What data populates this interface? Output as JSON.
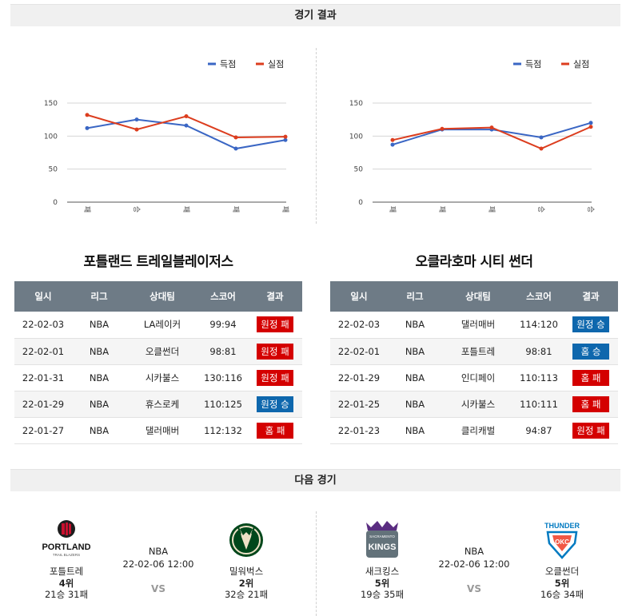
{
  "sections": {
    "results_title": "경기 결과",
    "next_title": "다음 경기"
  },
  "legend": {
    "score": "득점",
    "conceded": "실점",
    "score_color": "#3a66c4",
    "conceded_color": "#dc3d1e"
  },
  "charts": [
    {
      "chart_data": {
        "type": "line",
        "categories": [
          "패",
          "승",
          "패",
          "패",
          "패"
        ],
        "series": [
          {
            "name": "득점",
            "values": [
              112,
              125,
              116,
              81,
              94
            ]
          },
          {
            "name": "실점",
            "values": [
              132,
              110,
              130,
              98,
              99
            ]
          }
        ],
        "ylim": [
          0,
          150
        ],
        "yticks": [
          "0",
          "50",
          "100",
          "150"
        ],
        "legend": "top-right",
        "grid": true
      }
    },
    {
      "chart_data": {
        "type": "line",
        "categories": [
          "패",
          "패",
          "패",
          "승",
          "승"
        ],
        "series": [
          {
            "name": "득점",
            "values": [
              87,
              110,
              110,
              98,
              120
            ]
          },
          {
            "name": "실점",
            "values": [
              94,
              111,
              113,
              81,
              114
            ]
          }
        ],
        "ylim": [
          0,
          150
        ],
        "yticks": [
          "0",
          "50",
          "100",
          "150"
        ],
        "legend": "top-right",
        "grid": true
      }
    }
  ],
  "headers": [
    "일시",
    "리그",
    "상대팀",
    "스코어",
    "결과"
  ],
  "teams": [
    {
      "title": "포틀랜드 트레일블레이저스",
      "games": [
        {
          "date": "22-02-03",
          "league": "NBA",
          "opponent": "LA레이커",
          "score": "99:94",
          "result": "원정 패",
          "win": false
        },
        {
          "date": "22-02-01",
          "league": "NBA",
          "opponent": "오클썬더",
          "score": "98:81",
          "result": "원정 패",
          "win": false
        },
        {
          "date": "22-01-31",
          "league": "NBA",
          "opponent": "시카불스",
          "score": "130:116",
          "result": "원정 패",
          "win": false
        },
        {
          "date": "22-01-29",
          "league": "NBA",
          "opponent": "휴스로케",
          "score": "110:125",
          "result": "원정 승",
          "win": true
        },
        {
          "date": "22-01-27",
          "league": "NBA",
          "opponent": "댈러매버",
          "score": "112:132",
          "result": "홈 패",
          "win": false
        }
      ]
    },
    {
      "title": "오클라호마 시티 썬더",
      "games": [
        {
          "date": "22-02-03",
          "league": "NBA",
          "opponent": "댈러매버",
          "score": "114:120",
          "result": "원정 승",
          "win": true
        },
        {
          "date": "22-02-01",
          "league": "NBA",
          "opponent": "포틀트레",
          "score": "98:81",
          "result": "홈 승",
          "win": true
        },
        {
          "date": "22-01-29",
          "league": "NBA",
          "opponent": "인디페이",
          "score": "110:113",
          "result": "홈 패",
          "win": false
        },
        {
          "date": "22-01-25",
          "league": "NBA",
          "opponent": "시카불스",
          "score": "110:111",
          "result": "홈 패",
          "win": false
        },
        {
          "date": "22-01-23",
          "league": "NBA",
          "opponent": "클리캐벌",
          "score": "94:87",
          "result": "원정 패",
          "win": false
        }
      ]
    }
  ],
  "matches": [
    {
      "league": "NBA",
      "datetime": "22-02-06 12:00",
      "vs": "VS",
      "home": {
        "name": "포틀트레",
        "rank": "4위",
        "record": "21승 31패",
        "logo_text": "PORTLAND",
        "logo_sub": "TRAIL BLAZERS",
        "color": "#c8102e"
      },
      "away": {
        "name": "밀워벅스",
        "rank": "2위",
        "record": "32승 21패",
        "color": "#00471b"
      }
    },
    {
      "league": "NBA",
      "datetime": "22-02-06 12:00",
      "vs": "VS",
      "home": {
        "name": "새크킹스",
        "rank": "5위",
        "record": "19승 35패",
        "logo_text": "KINGS",
        "logo_sub": "SACRAMENTO",
        "color": "#5a2d81"
      },
      "away": {
        "name": "오클썬더",
        "rank": "5위",
        "record": "16승 34패",
        "logo_text": "THUNDER",
        "logo_sub": "OKC",
        "color": "#007ac1"
      }
    }
  ]
}
